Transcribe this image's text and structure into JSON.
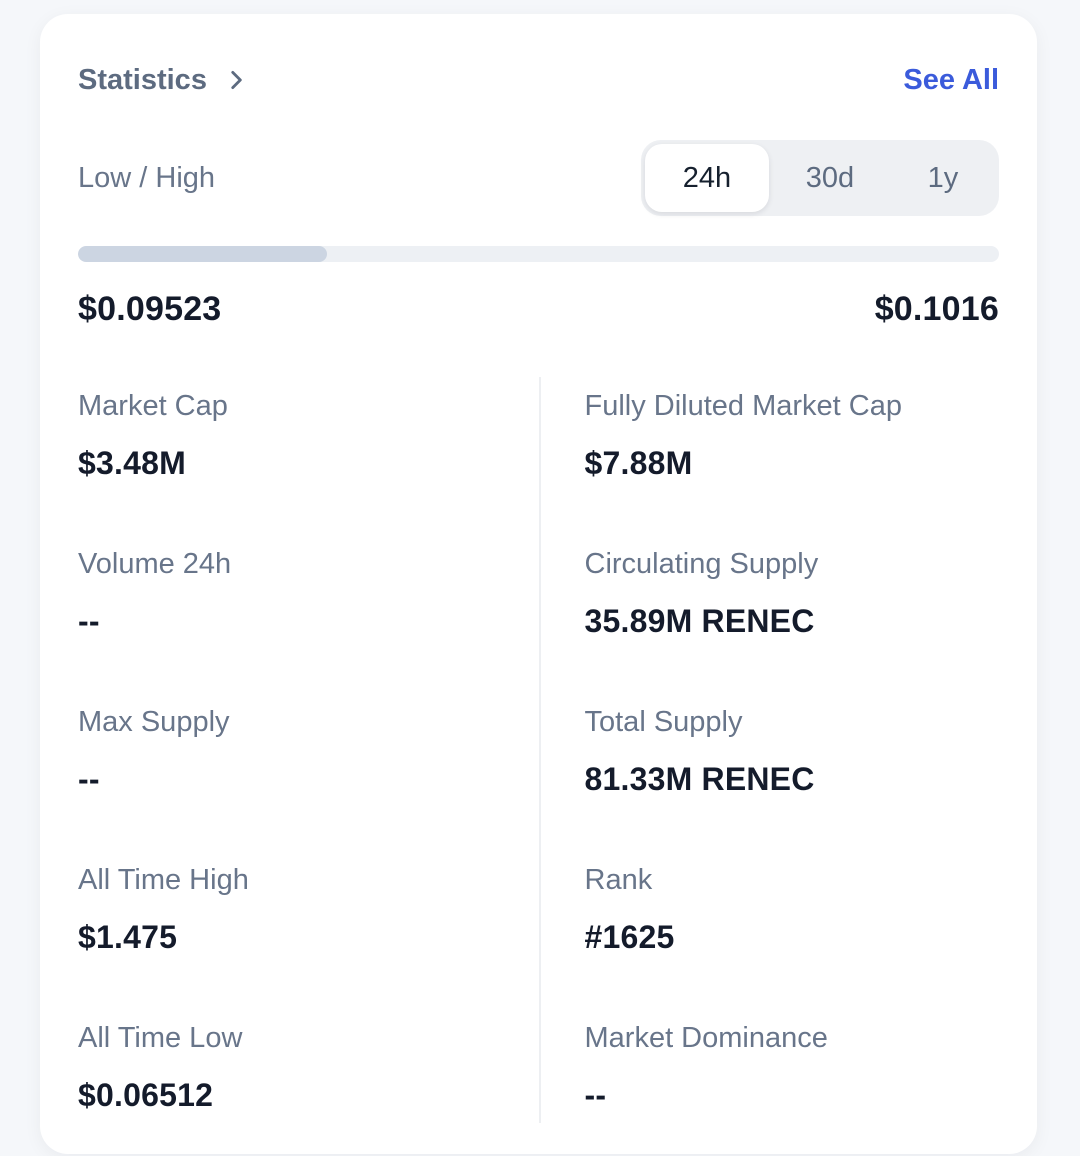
{
  "card": {
    "title": "Statistics",
    "see_all_label": "See All"
  },
  "range": {
    "label": "Low / High",
    "tabs": [
      {
        "label": "24h",
        "selected": true
      },
      {
        "label": "30d",
        "selected": false
      },
      {
        "label": "1y",
        "selected": false
      }
    ],
    "low_value": "$0.09523",
    "high_value": "$0.1016",
    "progress_percent": 27
  },
  "stats": {
    "left": [
      {
        "label": "Market Cap",
        "value": "$3.48M"
      },
      {
        "label": "Volume 24h",
        "value": "--"
      },
      {
        "label": "Max Supply",
        "value": "--"
      },
      {
        "label": "All Time High",
        "value": "$1.475"
      },
      {
        "label": "All Time Low",
        "value": "$0.06512"
      }
    ],
    "right": [
      {
        "label": "Fully Diluted Market Cap",
        "value": "$7.88M"
      },
      {
        "label": "Circulating Supply",
        "value": "35.89M RENEC"
      },
      {
        "label": "Total Supply",
        "value": "81.33M RENEC"
      },
      {
        "label": "Rank",
        "value": "#1625"
      },
      {
        "label": "Market Dominance",
        "value": "--"
      }
    ]
  },
  "colors": {
    "accent_blue": "#3b5bdb",
    "page_background": "#f5f7fa",
    "card_background": "#ffffff",
    "label_gray": "#68758a",
    "value_dark": "#141b2b",
    "progress_fill": "#ccd5e2",
    "progress_track": "#edf0f4"
  }
}
